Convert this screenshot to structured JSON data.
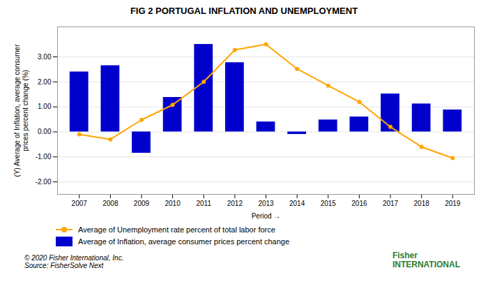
{
  "chart_data": {
    "type": "bar",
    "title": "FIG 2 PORTUGAL INFLATION AND UNEMPLOYMENT",
    "x_label": "Period",
    "y_label": "(Y) Average of Inflation, average consumer\nprices percent change (%)",
    "x": [
      2007,
      2008,
      2009,
      2010,
      2011,
      2012,
      2013,
      2014,
      2015,
      2016,
      2017,
      2018,
      2019
    ],
    "xlim": [
      2006.3,
      2019.7
    ],
    "xticks": [
      2007,
      2008,
      2009,
      2010,
      2011,
      2012,
      2013,
      2014,
      2015,
      2016,
      2017,
      2018,
      2019
    ],
    "ylim": [
      -2.5,
      4.2
    ],
    "yticks": [
      {
        "value": -2,
        "label": "-2.00"
      },
      {
        "value": -1,
        "label": "-1.00"
      },
      {
        "value": 0,
        "label": "0.00"
      },
      {
        "value": 1,
        "label": "1.00"
      },
      {
        "value": 2,
        "label": "2.00"
      },
      {
        "value": 3,
        "label": "3.00"
      }
    ],
    "grid": true,
    "legend": "bottom",
    "series": [
      {
        "name": "Average of Unemployment rate percent of total labor force",
        "type": "line",
        "marker": "circle",
        "color": "#FFA500",
        "values": [
          -0.1,
          -0.3,
          0.48,
          1.08,
          2.0,
          3.28,
          3.5,
          2.52,
          1.85,
          1.2,
          0.2,
          -0.6,
          -1.05
        ]
      },
      {
        "name": "Average of Inflation, average consumer prices percent change",
        "type": "bar",
        "color": "#0000CC",
        "values": [
          2.4,
          2.65,
          -0.85,
          1.38,
          3.5,
          2.77,
          0.4,
          -0.1,
          0.48,
          0.6,
          1.52,
          1.12,
          0.88
        ]
      }
    ],
    "annotations": [
      {
        "text": "© 2020 Fisher International, Inc.\nSource: FisherSolve Next"
      },
      {
        "text": "Fisher\nINTERNATIONAL",
        "color": "#2e7d32"
      }
    ]
  }
}
